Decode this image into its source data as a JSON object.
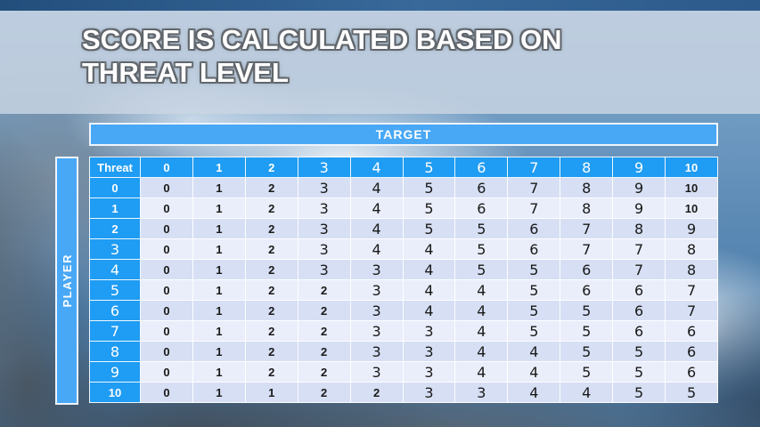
{
  "slide_title": "SCORE IS CALCULATED BASED ON THREAT LEVEL",
  "target_label": "TARGET",
  "player_label": "PLAYER",
  "table": {
    "corner_label": "Threat",
    "column_headers": [
      "0",
      "1",
      "2",
      "3",
      "4",
      "5",
      "6",
      "7",
      "8",
      "9",
      "10"
    ],
    "rows": [
      {
        "header": "0",
        "values": [
          0,
          1,
          2,
          3,
          4,
          5,
          6,
          7,
          8,
          9,
          10
        ]
      },
      {
        "header": "1",
        "values": [
          0,
          1,
          2,
          3,
          4,
          5,
          6,
          7,
          8,
          9,
          10
        ]
      },
      {
        "header": "2",
        "values": [
          0,
          1,
          2,
          3,
          4,
          5,
          5,
          6,
          7,
          8,
          9
        ]
      },
      {
        "header": "3",
        "values": [
          0,
          1,
          2,
          3,
          4,
          4,
          5,
          6,
          7,
          7,
          8
        ]
      },
      {
        "header": "4",
        "values": [
          0,
          1,
          2,
          3,
          3,
          4,
          5,
          5,
          6,
          7,
          8
        ]
      },
      {
        "header": "5",
        "values": [
          0,
          1,
          2,
          2,
          3,
          4,
          4,
          5,
          6,
          6,
          7
        ]
      },
      {
        "header": "6",
        "values": [
          0,
          1,
          2,
          2,
          3,
          4,
          4,
          5,
          5,
          6,
          7
        ]
      },
      {
        "header": "7",
        "values": [
          0,
          1,
          2,
          2,
          3,
          3,
          4,
          5,
          5,
          6,
          6
        ]
      },
      {
        "header": "8",
        "values": [
          0,
          1,
          2,
          2,
          3,
          3,
          4,
          4,
          5,
          5,
          6
        ]
      },
      {
        "header": "9",
        "values": [
          0,
          1,
          2,
          2,
          3,
          3,
          4,
          4,
          5,
          5,
          6
        ]
      },
      {
        "header": "10",
        "values": [
          0,
          1,
          1,
          2,
          2,
          3,
          3,
          4,
          4,
          5,
          5
        ]
      }
    ]
  },
  "chart_data": {
    "type": "table",
    "title": "SCORE IS CALCULATED BASED ON THREAT LEVEL",
    "column_axis_label": "TARGET",
    "row_axis_label": "PLAYER",
    "corner_label": "Threat",
    "columns": [
      0,
      1,
      2,
      3,
      4,
      5,
      6,
      7,
      8,
      9,
      10
    ],
    "row_headers": [
      0,
      1,
      2,
      3,
      4,
      5,
      6,
      7,
      8,
      9,
      10
    ],
    "matrix": [
      [
        0,
        1,
        2,
        3,
        4,
        5,
        6,
        7,
        8,
        9,
        10
      ],
      [
        0,
        1,
        2,
        3,
        4,
        5,
        6,
        7,
        8,
        9,
        10
      ],
      [
        0,
        1,
        2,
        3,
        4,
        5,
        5,
        6,
        7,
        8,
        9
      ],
      [
        0,
        1,
        2,
        3,
        4,
        4,
        5,
        6,
        7,
        7,
        8
      ],
      [
        0,
        1,
        2,
        3,
        3,
        4,
        5,
        5,
        6,
        7,
        8
      ],
      [
        0,
        1,
        2,
        2,
        3,
        4,
        4,
        5,
        6,
        6,
        7
      ],
      [
        0,
        1,
        2,
        2,
        3,
        4,
        4,
        5,
        5,
        6,
        7
      ],
      [
        0,
        1,
        2,
        2,
        3,
        3,
        4,
        5,
        5,
        6,
        6
      ],
      [
        0,
        1,
        2,
        2,
        3,
        3,
        4,
        4,
        5,
        5,
        6
      ],
      [
        0,
        1,
        2,
        2,
        3,
        3,
        4,
        4,
        5,
        5,
        6
      ],
      [
        0,
        1,
        1,
        2,
        2,
        3,
        3,
        4,
        4,
        5,
        5
      ]
    ]
  },
  "colors": {
    "band_blue": "#49a8f6",
    "header_blue": "#1f9cf3",
    "row_band_dark": "#d6dff4",
    "row_band_light": "#eaeefb",
    "title_text": "#ffffff",
    "cell_text": "#191919"
  }
}
